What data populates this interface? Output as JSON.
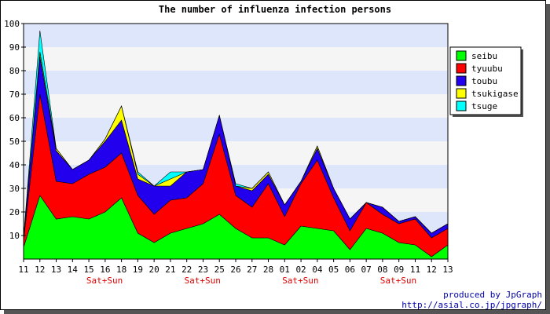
{
  "chart_data": {
    "type": "area",
    "stacked": true,
    "title": "The number of influenza infection persons",
    "categories": [
      "11",
      "12",
      "13",
      "14",
      "15",
      "16",
      "18",
      "19",
      "20",
      "21",
      "22",
      "23",
      "25",
      "26",
      "27",
      "28",
      "01",
      "02",
      "04",
      "05",
      "06",
      "07",
      "08",
      "09",
      "11",
      "12",
      "13"
    ],
    "weekend_labels": [
      "Sat+Sun",
      "Sat+Sun",
      "Sat+Sun",
      "Sat+Sun"
    ],
    "weekend_label_positions": [
      4,
      10,
      16,
      22
    ],
    "ylim": [
      0,
      100
    ],
    "yticks": [
      10,
      20,
      30,
      40,
      50,
      60,
      70,
      80,
      90,
      100
    ],
    "grid": true,
    "legend_position": "top-right",
    "series": [
      {
        "name": "seibu",
        "color": "#00ff00",
        "values": [
          5,
          27,
          17,
          18,
          17,
          20,
          26,
          11,
          7,
          11,
          13,
          15,
          19,
          13,
          9,
          9,
          6,
          14,
          13,
          12,
          4,
          13,
          11,
          7,
          6,
          1,
          6
        ]
      },
      {
        "name": "tyuubu",
        "color": "#ff0000",
        "values": [
          3,
          43,
          16,
          14,
          19,
          19,
          19,
          16,
          12,
          14,
          13,
          17,
          34,
          14,
          13,
          23,
          12,
          18,
          29,
          14,
          8,
          11,
          8,
          8,
          11,
          8,
          7
        ]
      },
      {
        "name": "toubu",
        "color": "#2200ee",
        "values": [
          1,
          16,
          13,
          6,
          6,
          11,
          14,
          7,
          12,
          6,
          11,
          6,
          8,
          4,
          7,
          4,
          5,
          1,
          5,
          4,
          5,
          0,
          3,
          1,
          1,
          2,
          2
        ]
      },
      {
        "name": "tsukigase",
        "color": "#ffff00",
        "values": [
          0,
          2,
          1,
          0,
          0,
          1,
          6,
          2,
          0,
          3,
          0,
          0,
          0,
          0,
          1,
          1,
          0,
          0,
          1,
          0,
          0,
          0,
          0,
          0,
          0,
          0,
          0
        ]
      },
      {
        "name": "tsuge",
        "color": "#00ffff",
        "values": [
          0,
          9,
          0,
          0,
          0,
          0,
          0,
          1,
          0,
          3,
          0,
          0,
          0,
          1,
          0,
          0,
          0,
          0,
          0,
          0,
          0,
          0,
          0,
          0,
          0,
          0,
          0
        ]
      }
    ]
  },
  "credit": {
    "line1": "produced by JpGraph",
    "line2": "http://asial.co.jp/jpgraph/"
  }
}
